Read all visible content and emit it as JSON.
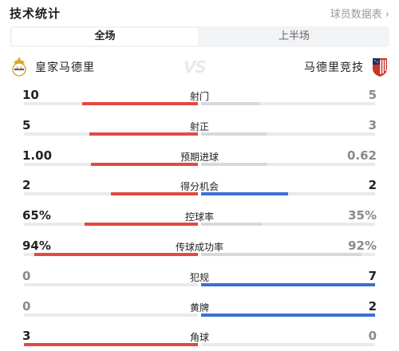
{
  "header": {
    "title": "技术统计",
    "link": "球员数据表",
    "link_icon": "chevron-right-icon"
  },
  "tabs": [
    {
      "label": "全场",
      "active": true
    },
    {
      "label": "上半场",
      "active": false
    }
  ],
  "teams": {
    "home": {
      "name": "皇家马德里",
      "logo": "real-madrid-logo"
    },
    "away": {
      "name": "马德里竞技",
      "logo": "atletico-madrid-logo"
    },
    "vs": "VS"
  },
  "colors": {
    "home": "#e24a42",
    "away_lead": "#3b6fd6",
    "neutral": "#d7d7de",
    "track": "#e9e9ee"
  },
  "stats": [
    {
      "label": "射门",
      "home": "10",
      "away": "5",
      "home_share": 0.667,
      "away_share": 0.333
    },
    {
      "label": "射正",
      "home": "5",
      "away": "3",
      "home_share": 0.625,
      "away_share": 0.375
    },
    {
      "label": "预期进球",
      "home": "1.00",
      "away": "0.62",
      "home_share": 0.617,
      "away_share": 0.383
    },
    {
      "label": "得分机会",
      "home": "2",
      "away": "2",
      "home_share": 0.5,
      "away_share": 0.5
    },
    {
      "label": "控球率",
      "home": "65%",
      "away": "35%",
      "home_share": 0.65,
      "away_share": 0.35
    },
    {
      "label": "传球成功率",
      "home": "94%",
      "away": "92%",
      "home_share": 0.94,
      "away_share": 0.92
    },
    {
      "label": "犯规",
      "home": "0",
      "away": "7",
      "home_share": 0.0,
      "away_share": 1.0
    },
    {
      "label": "黄牌",
      "home": "0",
      "away": "2",
      "home_share": 0.0,
      "away_share": 1.0
    },
    {
      "label": "角球",
      "home": "3",
      "away": "0",
      "home_share": 1.0,
      "away_share": 0.0
    }
  ]
}
